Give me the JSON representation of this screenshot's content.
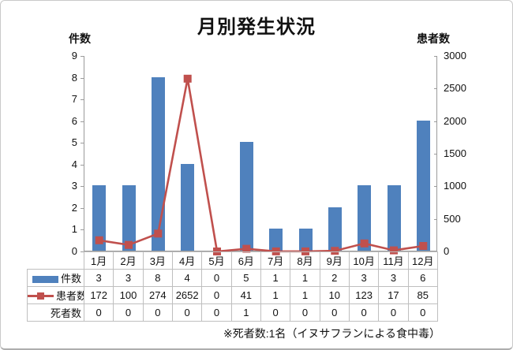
{
  "title": "月別発生状況",
  "left_axis_title": "件数",
  "right_axis_title": "患者数",
  "footnote": "※死者数:1名（イヌサフランによる食中毒）",
  "colors": {
    "bar_blue": "#4F81BD",
    "line_red": "#C0504D",
    "axis_line": "#9B9B9B",
    "table_grid": "#BFBFBF"
  },
  "chart_data": {
    "type": "bar",
    "subtype": "combo-bar-line-dual-axis",
    "title": "月別発生状況",
    "categories": [
      "1月",
      "2月",
      "3月",
      "4月",
      "5月",
      "6月",
      "7月",
      "8月",
      "9月",
      "10月",
      "11月",
      "12月"
    ],
    "series": [
      {
        "name": "件数",
        "chart": "bar",
        "axis": "left",
        "color": "#4F81BD",
        "swatch": "bar-swatch",
        "values": [
          3,
          3,
          8,
          4,
          0,
          5,
          1,
          1,
          2,
          3,
          3,
          6
        ]
      },
      {
        "name": "患者数",
        "chart": "line",
        "axis": "right",
        "color": "#C0504D",
        "swatch": "line-square-marker-swatch",
        "marker": "square",
        "values": [
          172,
          100,
          274,
          2652,
          0,
          41,
          1,
          1,
          10,
          123,
          17,
          85
        ]
      },
      {
        "name": "死者数",
        "chart": "none",
        "axis": "left",
        "color": "",
        "swatch": "none",
        "values": [
          0,
          0,
          0,
          0,
          0,
          1,
          0,
          0,
          0,
          0,
          0,
          0
        ]
      }
    ],
    "left_axis": {
      "label": "件数",
      "min": 0,
      "max": 9,
      "ticks": [
        0,
        1,
        2,
        3,
        4,
        5,
        6,
        7,
        8,
        9
      ]
    },
    "right_axis": {
      "label": "患者数",
      "min": 0,
      "max": 3000,
      "ticks": [
        0,
        500,
        1000,
        1500,
        2000,
        2500,
        3000
      ]
    },
    "grid": false,
    "legend_position": "data-table-left",
    "data_table_shown": true
  }
}
